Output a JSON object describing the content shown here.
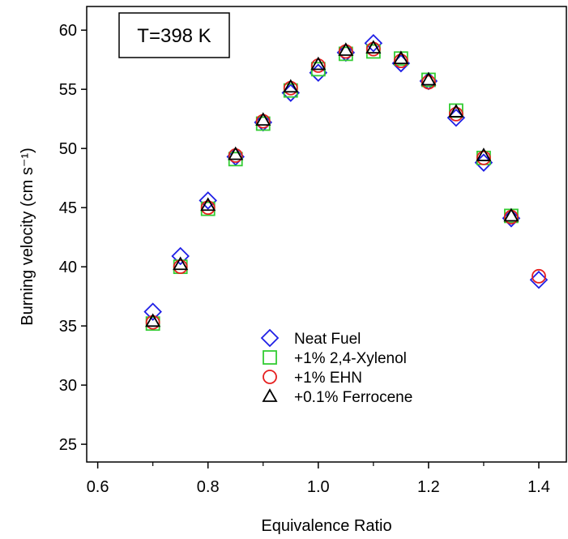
{
  "chart_data": {
    "type": "scatter",
    "annotation": "T=398 K",
    "xlabel": "Equivalence Ratio",
    "ylabel": "Burning velocity (cm s⁻¹)",
    "xlim": [
      0.58,
      1.45
    ],
    "ylim": [
      23.5,
      62
    ],
    "x_ticks": [
      "0.6",
      "0.8",
      "1.0",
      "1.2",
      "1.4"
    ],
    "y_ticks": [
      "25",
      "30",
      "35",
      "40",
      "45",
      "50",
      "55",
      "60"
    ],
    "grid": false,
    "legend_position": "bottom-center",
    "series": [
      {
        "name": "Neat Fuel",
        "marker": "diamond",
        "color": "#1f1fe6",
        "points": [
          [
            0.7,
            36.2
          ],
          [
            0.75,
            40.9
          ],
          [
            0.8,
            45.6
          ],
          [
            0.85,
            49.3
          ],
          [
            0.9,
            52.2
          ],
          [
            0.95,
            54.7
          ],
          [
            1.0,
            56.4
          ],
          [
            1.05,
            58.1
          ],
          [
            1.1,
            58.9
          ],
          [
            1.15,
            57.2
          ],
          [
            1.2,
            55.7
          ],
          [
            1.25,
            52.6
          ],
          [
            1.3,
            48.8
          ],
          [
            1.35,
            44.1
          ],
          [
            1.4,
            38.9
          ]
        ]
      },
      {
        "name": "+1% 2,4-Xylenol",
        "marker": "square",
        "color": "#33cc33",
        "points": [
          [
            0.7,
            35.2
          ],
          [
            0.75,
            40.0
          ],
          [
            0.8,
            44.9
          ],
          [
            0.85,
            49.1
          ],
          [
            0.9,
            52.1
          ],
          [
            0.95,
            54.9
          ],
          [
            1.0,
            56.7
          ],
          [
            1.05,
            58.0
          ],
          [
            1.1,
            58.2
          ],
          [
            1.15,
            57.6
          ],
          [
            1.2,
            55.8
          ],
          [
            1.25,
            53.2
          ],
          [
            1.3,
            49.2
          ],
          [
            1.35,
            44.3
          ]
        ]
      },
      {
        "name": "+1% EHN",
        "marker": "circle",
        "color": "#e61f1f",
        "points": [
          [
            0.7,
            35.3
          ],
          [
            0.75,
            40.0
          ],
          [
            0.8,
            45.0
          ],
          [
            0.85,
            49.4
          ],
          [
            0.9,
            52.3
          ],
          [
            0.95,
            55.1
          ],
          [
            1.0,
            57.0
          ],
          [
            1.05,
            58.2
          ],
          [
            1.1,
            58.4
          ],
          [
            1.15,
            57.4
          ],
          [
            1.2,
            55.6
          ],
          [
            1.25,
            52.9
          ],
          [
            1.3,
            49.2
          ],
          [
            1.35,
            44.2
          ],
          [
            1.4,
            39.2
          ]
        ]
      },
      {
        "name": "+0.1% Ferrocene",
        "marker": "triangle",
        "color": "#000000",
        "points": [
          [
            0.7,
            35.4
          ],
          [
            0.75,
            40.2
          ],
          [
            0.8,
            45.2
          ],
          [
            0.85,
            49.5
          ],
          [
            0.9,
            52.4
          ],
          [
            0.95,
            55.2
          ],
          [
            1.0,
            57.1
          ],
          [
            1.05,
            58.3
          ],
          [
            1.1,
            58.5
          ],
          [
            1.15,
            57.6
          ],
          [
            1.2,
            55.8
          ],
          [
            1.25,
            53.1
          ],
          [
            1.3,
            49.4
          ],
          [
            1.35,
            44.3
          ]
        ]
      }
    ]
  }
}
